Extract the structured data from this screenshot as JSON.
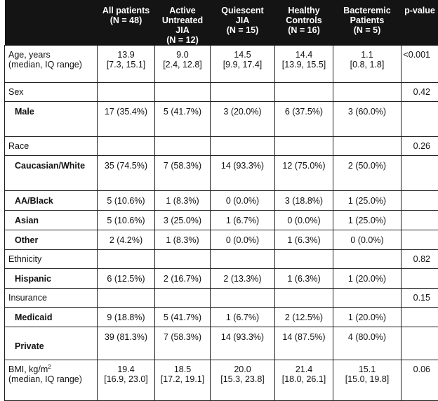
{
  "columns": [
    {
      "line1": "",
      "line2": "",
      "line3": ""
    },
    {
      "line1": "All patients",
      "line2": "(N = 48)",
      "line3": ""
    },
    {
      "line1": "Active",
      "line2": "Untreated",
      "line3": "JIA",
      "line4": "(N = 12)"
    },
    {
      "line1": "Quiescent",
      "line2": "JIA",
      "line3": "(N = 15)"
    },
    {
      "line1": "Healthy",
      "line2": "Controls",
      "line3": "(N = 16)"
    },
    {
      "line1": "Bacteremic",
      "line2": "Patients",
      "line3": "(N = 5)"
    },
    {
      "line1": "p-value"
    }
  ],
  "rows": {
    "age": {
      "label1": "Age, years",
      "label2": "(median, IQ range)",
      "cells": [
        [
          "13.9",
          "[7.3, 15.1]"
        ],
        [
          "9.0",
          "[2.4, 12.8]"
        ],
        [
          "14.5",
          "[9.9, 17.4]"
        ],
        [
          "14.4",
          "[13.9, 15.5]"
        ],
        [
          "1.1",
          "[0.8, 1.8]"
        ]
      ],
      "p": "<0.001"
    },
    "sex": {
      "label": "Sex",
      "p": "0.42"
    },
    "male": {
      "label": "Male",
      "cells": [
        "17 (35.4%)",
        "5 (41.7%)",
        "3 (20.0%)",
        "6 (37.5%)",
        "3 (60.0%)"
      ]
    },
    "race": {
      "label": "Race",
      "p": "0.26"
    },
    "caucasian": {
      "label": "Caucasian/White",
      "cells": [
        "35 (74.5%)",
        "7 (58.3%)",
        "14 (93.3%)",
        "12 (75.0%)",
        "2 (50.0%)"
      ]
    },
    "aablack": {
      "label": "AA/Black",
      "cells": [
        "5 (10.6%)",
        "1 (8.3%)",
        "0 (0.0%)",
        "3 (18.8%)",
        "1 (25.0%)"
      ]
    },
    "asian": {
      "label": "Asian",
      "cells": [
        "5 (10.6%)",
        "3 (25.0%)",
        "1 (6.7%)",
        "0 (0.0%)",
        "1 (25.0%)"
      ]
    },
    "other": {
      "label": "Other",
      "cells": [
        "2 (4.2%)",
        "1 (8.3%)",
        "0 (0.0%)",
        "1 (6.3%)",
        "0 (0.0%)"
      ]
    },
    "ethnicity": {
      "label": "Ethnicity",
      "p": "0.82"
    },
    "hispanic": {
      "label": "Hispanic",
      "cells": [
        "6 (12.5%)",
        "2 (16.7%)",
        "2 (13.3%)",
        "1 (6.3%)",
        "1 (20.0%)"
      ]
    },
    "insurance": {
      "label": "Insurance",
      "p": "0.15"
    },
    "medicaid": {
      "label": "Medicaid",
      "cells": [
        "9 (18.8%)",
        "5 (41.7%)",
        "1 (6.7%)",
        "2 (12.5%)",
        "1 (20.0%)"
      ]
    },
    "private": {
      "label": "Private",
      "cells": [
        "39 (81.3%)",
        "7 (58.3%)",
        "14 (93.3%)",
        "14 (87.5%)",
        "4 (80.0%)"
      ]
    },
    "bmi": {
      "label1": "BMI, kg/m",
      "label1_sup": "2",
      "label2": "(median, IQ range)",
      "cells": [
        [
          "19.4",
          "[16.9, 23.0]"
        ],
        [
          "18.5",
          "[17.2, 19.1]"
        ],
        [
          "20.0",
          "[15.3, 23.8]"
        ],
        [
          "21.4",
          "[18.0, 26.1]"
        ],
        [
          "15.1",
          "[15.0, 19.8]"
        ]
      ],
      "p": "0.06"
    }
  }
}
